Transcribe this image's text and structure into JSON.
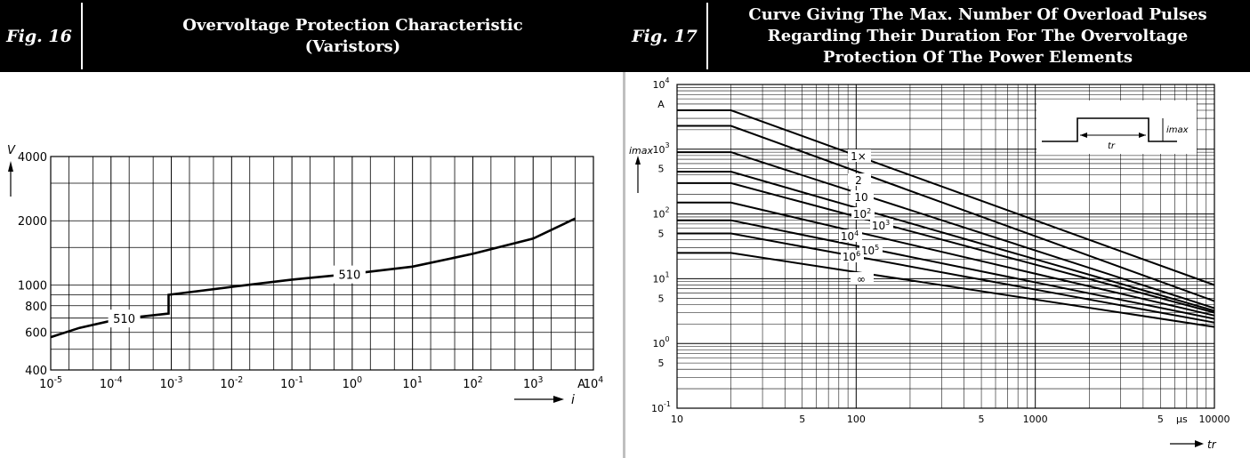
{
  "fig16": {
    "fig_label": "Fig. 16",
    "title_line1": "Overvoltage Protection Characteristic",
    "title_line2": "(Varistors)"
  },
  "fig17": {
    "fig_label": "Fig. 17",
    "title_line1": "Curve Giving The Max. Number Of Overload Pulses",
    "title_line2": "Regarding Their Duration For The Overvoltage",
    "title_line3": "Protection Of The Power Elements"
  },
  "chart_data": [
    {
      "type": "line",
      "x_scale": "log",
      "y_scale": "log",
      "xlim": [
        1e-05,
        10000
      ],
      "ylim": [
        400,
        4000
      ],
      "xlabel": "i",
      "ylabel": "V",
      "x_unit": "A",
      "x_ticks": [
        "10-5",
        "10-4",
        "10-3",
        "10-2",
        "10-1",
        "100",
        "101",
        "102",
        "103",
        "104"
      ],
      "y_ticks": [
        "400",
        "600",
        "800",
        "1000",
        "2000",
        "4000"
      ],
      "grid": true,
      "annotations": [
        "510",
        "510"
      ],
      "series": [
        {
          "name": "510",
          "points": [
            [
              1e-05,
              570
            ],
            [
              3e-05,
              630
            ],
            [
              0.0001,
              680
            ],
            [
              0.0003,
              710
            ],
            [
              0.0009,
              735
            ],
            [
              0.0009,
              900
            ],
            [
              0.01,
              980
            ],
            [
              0.1,
              1060
            ],
            [
              1,
              1130
            ],
            [
              10,
              1220
            ],
            [
              100,
              1400
            ],
            [
              1000,
              1650
            ],
            [
              5000,
              2050
            ]
          ]
        }
      ]
    },
    {
      "type": "line",
      "x_scale": "log",
      "y_scale": "log",
      "xlim": [
        10,
        10000
      ],
      "ylim": [
        0.1,
        10000
      ],
      "xlabel": "tr",
      "ylabel": "imax",
      "y_unit": "A",
      "x_unit": "µs",
      "x_ticks": [
        "10",
        "5",
        "100",
        "5",
        "1000",
        "5",
        "10000"
      ],
      "y_ticks": [
        "10-1",
        "5",
        "100",
        "5",
        "101",
        "5",
        "102",
        "5",
        "103",
        "A",
        "104"
      ],
      "grid": true,
      "inset": {
        "label": "imax",
        "sublabel": "tr"
      },
      "series": [
        {
          "name": "1×",
          "points": [
            [
              10,
              4000
            ],
            [
              20,
              4000
            ],
            [
              10000,
              8
            ]
          ]
        },
        {
          "name": "2",
          "points": [
            [
              10,
              2300
            ],
            [
              20,
              2300
            ],
            [
              10000,
              4.5
            ]
          ]
        },
        {
          "name": "10",
          "points": [
            [
              10,
              900
            ],
            [
              20,
              900
            ],
            [
              10000,
              3.5
            ]
          ]
        },
        {
          "name": "102",
          "points": [
            [
              10,
              450
            ],
            [
              20,
              450
            ],
            [
              10000,
              3.2
            ]
          ]
        },
        {
          "name": "103",
          "points": [
            [
              10,
              300
            ],
            [
              20,
              300
            ],
            [
              10000,
              3.0
            ]
          ]
        },
        {
          "name": "104",
          "points": [
            [
              10,
              150
            ],
            [
              20,
              150
            ],
            [
              10000,
              2.7
            ]
          ]
        },
        {
          "name": "105",
          "points": [
            [
              10,
              80
            ],
            [
              20,
              80
            ],
            [
              10000,
              2.4
            ]
          ]
        },
        {
          "name": "106",
          "points": [
            [
              10,
              50
            ],
            [
              20,
              50
            ],
            [
              10000,
              2.1
            ]
          ]
        },
        {
          "name": "∞",
          "points": [
            [
              10,
              25
            ],
            [
              20,
              25
            ],
            [
              10000,
              1.8
            ]
          ]
        }
      ]
    }
  ]
}
